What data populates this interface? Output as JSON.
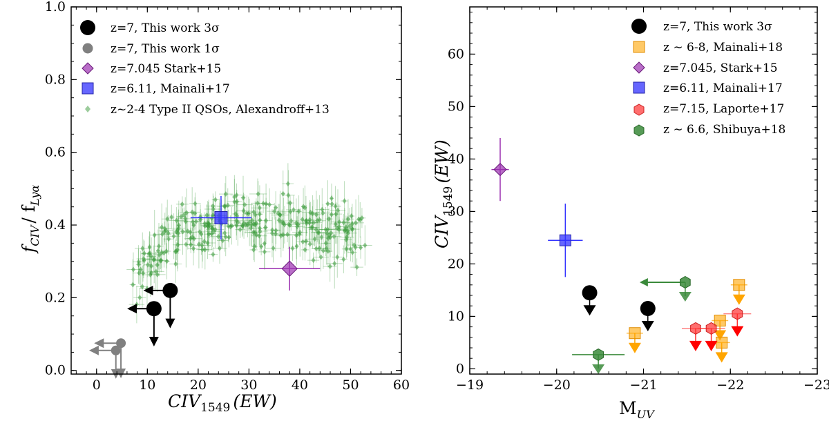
{
  "chart_data": [
    {
      "type": "scatter",
      "xlabel": "CIV",
      "xlabel_sub": "1549",
      "xlabel_tail": "(EW)",
      "ylabel": "f",
      "ylabel_sub1": "CIV",
      "ylabel_mid": "/ f",
      "ylabel_sub2": "Lyα",
      "xlim": [
        -5,
        60
      ],
      "ylim": [
        -0.01,
        1.0
      ],
      "xticks": [
        "0",
        "10",
        "20",
        "30",
        "40",
        "50",
        "60"
      ],
      "yticks": [
        "0.0",
        "0.2",
        "0.4",
        "0.6",
        "0.8",
        "1.0"
      ],
      "legend_position": "top-left",
      "legend": [
        {
          "label": "z=7, This work 3σ",
          "color": "#000000",
          "marker": "circle"
        },
        {
          "label": "z=7, This work 1σ",
          "color": "#808080",
          "marker": "circle"
        },
        {
          "label": "z=7.045 Stark+15",
          "color": "#9b30b0",
          "marker": "diamond"
        },
        {
          "label": "z=6.11, Mainali+17",
          "color": "#3333ff",
          "marker": "square"
        },
        {
          "label": "z~2-4 Type II QSOs, Alexandroff+13",
          "color": "#3a9a3a",
          "marker": "diamond-small"
        }
      ],
      "series": [
        {
          "name": "z=7, This work 3σ",
          "color": "#000000",
          "points": [
            {
              "x": 11.3,
              "y": 0.17
            },
            {
              "x": 14.5,
              "y": 0.22
            }
          ],
          "limits": "upper x and y"
        },
        {
          "name": "z=7, This work 1σ",
          "color": "#808080",
          "points": [
            {
              "x": 3.8,
              "y": 0.055
            },
            {
              "x": 4.8,
              "y": 0.075
            }
          ],
          "limits": "upper x and y"
        },
        {
          "name": "z=7.045 Stark+15",
          "color": "#9b30b0",
          "points": [
            {
              "x": 38.0,
              "y": 0.28,
              "xerr": 6.0,
              "yerr": 0.06
            }
          ]
        },
        {
          "name": "z=6.11, Mainali+17",
          "color": "#3333ff",
          "points": [
            {
              "x": 24.5,
              "y": 0.42,
              "xerr": 6.0,
              "yerr": 0.06
            }
          ]
        },
        {
          "name": "z~2-4 Type II QSOs, Alexandroff+13",
          "color": "#3a9a3a",
          "points_note": "approximately 300 points, x in 5-57, y in 0.1-0.72"
        }
      ]
    },
    {
      "type": "scatter",
      "xlabel": "M",
      "xlabel_sub": "UV",
      "ylabel": "CIV",
      "ylabel_sub": "1549",
      "ylabel_tail": "(EW)",
      "xlim": [
        -19,
        -23
      ],
      "ylim": [
        -1,
        69
      ],
      "xticks": [
        "−19",
        "−20",
        "−21",
        "−22",
        "−23"
      ],
      "yticks": [
        "0",
        "10",
        "20",
        "30",
        "40",
        "50",
        "60"
      ],
      "legend_position": "top-right",
      "legend": [
        {
          "label": "z=7, This work 3σ",
          "color": "#000000",
          "marker": "circle"
        },
        {
          "label": "z ∼ 6-8, Mainali+18",
          "color": "#ffa500",
          "marker": "square"
        },
        {
          "label": "z=7.045, Stark+15",
          "color": "#9b30b0",
          "marker": "diamond"
        },
        {
          "label": "z=6.11, Mainali+17",
          "color": "#3333ff",
          "marker": "square"
        },
        {
          "label": "z=7.15, Laporte+17",
          "color": "#ff3030",
          "marker": "hexagon"
        },
        {
          "label": "z ∼ 6.6, Shibuya+18",
          "color": "#3a8a3a",
          "marker": "hexagon"
        }
      ],
      "series": [
        {
          "name": "z=7, This work 3σ",
          "color": "#000000",
          "points": [
            {
              "x": -20.38,
              "y": 14.5
            },
            {
              "x": -21.05,
              "y": 11.5
            }
          ],
          "limits": "upper y"
        },
        {
          "name": "z ∼ 6-8, Mainali+18",
          "color": "#ffa500",
          "points": [
            {
              "x": -20.9,
              "y": 6.8
            },
            {
              "x": -21.88,
              "y": 9.2
            },
            {
              "x": -21.9,
              "y": 5.0
            },
            {
              "x": -22.1,
              "y": 16.0
            }
          ],
          "limits": "upper y"
        },
        {
          "name": "z=7.045, Stark+15",
          "color": "#9b30b0",
          "points": [
            {
              "x": -19.35,
              "y": 38.0,
              "xerr": 0.1,
              "yerr": 6.0
            }
          ]
        },
        {
          "name": "z=6.11, Mainali+17",
          "color": "#3333ff",
          "points": [
            {
              "x": -20.1,
              "y": 24.5,
              "xerr": 0.2,
              "yerr": 7.0
            }
          ]
        },
        {
          "name": "z=7.15, Laporte+17",
          "color": "#ff3030",
          "points": [
            {
              "x": -21.6,
              "y": 7.7
            },
            {
              "x": -21.78,
              "y": 7.7
            },
            {
              "x": -22.08,
              "y": 10.5
            }
          ],
          "limits": "upper y"
        },
        {
          "name": "z ∼ 6.6, Shibuya+18",
          "color": "#3a8a3a",
          "points": [
            {
              "x": -20.48,
              "y": 2.7
            },
            {
              "x": -21.48,
              "y": 16.5
            }
          ],
          "limits": "upper y and x"
        }
      ]
    }
  ]
}
